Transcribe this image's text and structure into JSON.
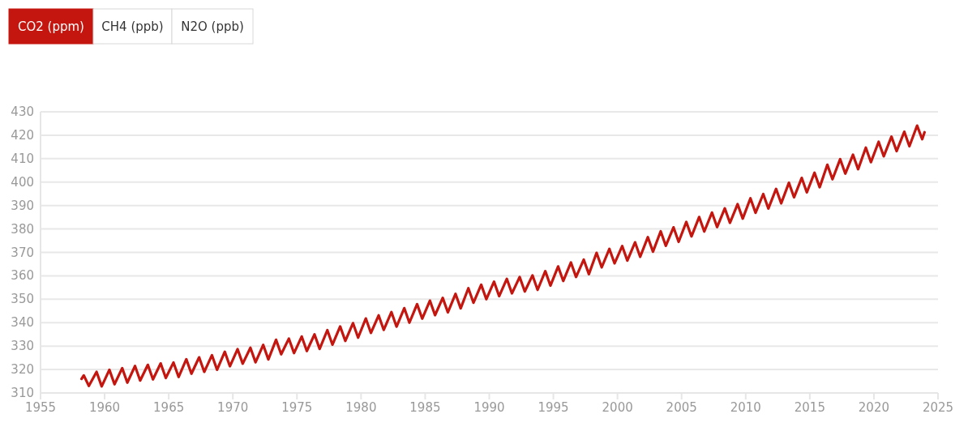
{
  "chart_data": {
    "type": "line",
    "annotations": [
      "CO2 (ppm)",
      "CH4 (ppb)",
      "N2O (ppb)"
    ],
    "series": [
      {
        "color": "#c4160f",
        "x": [
          1958.2,
          1958.37,
          1958.77,
          1959.37,
          1959.77,
          1960.37,
          1960.77,
          1961.37,
          1961.77,
          1962.37,
          1962.77,
          1963.37,
          1963.77,
          1964.37,
          1964.77,
          1965.37,
          1965.77,
          1966.37,
          1966.77,
          1967.37,
          1967.77,
          1968.37,
          1968.77,
          1969.37,
          1969.77,
          1970.37,
          1970.77,
          1971.37,
          1971.77,
          1972.37,
          1972.77,
          1973.37,
          1973.77,
          1974.37,
          1974.77,
          1975.37,
          1975.77,
          1976.37,
          1976.77,
          1977.37,
          1977.77,
          1978.37,
          1978.77,
          1979.37,
          1979.77,
          1980.37,
          1980.77,
          1981.37,
          1981.77,
          1982.37,
          1982.77,
          1983.37,
          1983.77,
          1984.37,
          1984.77,
          1985.37,
          1985.77,
          1986.37,
          1986.77,
          1987.37,
          1987.77,
          1988.37,
          1988.77,
          1989.37,
          1989.77,
          1990.37,
          1990.77,
          1991.37,
          1991.77,
          1992.37,
          1992.77,
          1993.37,
          1993.77,
          1994.37,
          1994.77,
          1995.37,
          1995.77,
          1996.37,
          1996.77,
          1997.37,
          1997.77,
          1998.37,
          1998.77,
          1999.37,
          1999.77,
          2000.37,
          2000.77,
          2001.37,
          2001.77,
          2002.37,
          2002.77,
          2003.37,
          2003.77,
          2004.37,
          2004.77,
          2005.37,
          2005.77,
          2006.37,
          2006.77,
          2007.37,
          2007.77,
          2008.37,
          2008.77,
          2009.37,
          2009.77,
          2010.37,
          2010.77,
          2011.37,
          2011.77,
          2012.37,
          2012.77,
          2013.37,
          2013.77,
          2014.37,
          2014.77,
          2015.37,
          2015.77,
          2016.37,
          2016.77,
          2017.37,
          2017.77,
          2018.37,
          2018.77,
          2019.37,
          2019.77,
          2020.37,
          2020.77,
          2021.37,
          2021.77,
          2022.37,
          2022.77,
          2023.37,
          2023.77,
          2023.95
        ],
        "values": [
          316.0,
          317.5,
          313.0,
          319.0,
          312.8,
          319.9,
          313.7,
          320.6,
          314.4,
          321.5,
          315.3,
          322.0,
          315.8,
          322.6,
          316.4,
          323.0,
          316.8,
          324.4,
          318.2,
          325.2,
          319.0,
          326.1,
          319.9,
          327.6,
          321.4,
          328.7,
          322.5,
          329.3,
          323.1,
          330.5,
          324.3,
          332.7,
          326.5,
          333.2,
          327.0,
          334.1,
          327.9,
          335.0,
          328.8,
          336.8,
          330.6,
          338.4,
          332.2,
          339.8,
          333.6,
          341.8,
          335.6,
          343.1,
          336.9,
          344.5,
          338.3,
          346.2,
          340.0,
          347.9,
          341.7,
          349.4,
          343.2,
          350.6,
          344.4,
          352.3,
          346.1,
          354.7,
          348.5,
          356.2,
          350.0,
          357.5,
          351.3,
          358.7,
          352.5,
          359.5,
          353.3,
          360.2,
          354.0,
          362.0,
          355.8,
          364.0,
          357.8,
          365.7,
          359.5,
          366.9,
          360.7,
          369.8,
          363.6,
          371.5,
          365.3,
          372.7,
          366.5,
          374.3,
          368.1,
          376.5,
          370.3,
          379.0,
          372.8,
          380.7,
          374.5,
          383.0,
          376.8,
          385.1,
          378.9,
          387.0,
          380.8,
          388.8,
          382.6,
          390.6,
          384.4,
          393.1,
          386.9,
          394.9,
          388.7,
          397.1,
          390.9,
          399.7,
          393.5,
          401.8,
          395.6,
          404.0,
          397.8,
          407.4,
          401.2,
          409.8,
          403.6,
          411.7,
          405.5,
          414.7,
          408.5,
          417.2,
          411.0,
          419.4,
          413.2,
          421.5,
          415.3,
          424.1,
          418.3,
          421.3
        ]
      }
    ],
    "xlim": [
      1955,
      2025
    ],
    "xticks": [
      1955,
      1960,
      1965,
      1970,
      1975,
      1980,
      1985,
      1990,
      1995,
      2000,
      2005,
      2010,
      2015,
      2020,
      2025
    ],
    "ylim": [
      310,
      430
    ],
    "yticks": [
      310,
      320,
      330,
      340,
      350,
      360,
      370,
      380,
      390,
      400,
      410,
      420,
      430
    ],
    "grid": "y"
  }
}
